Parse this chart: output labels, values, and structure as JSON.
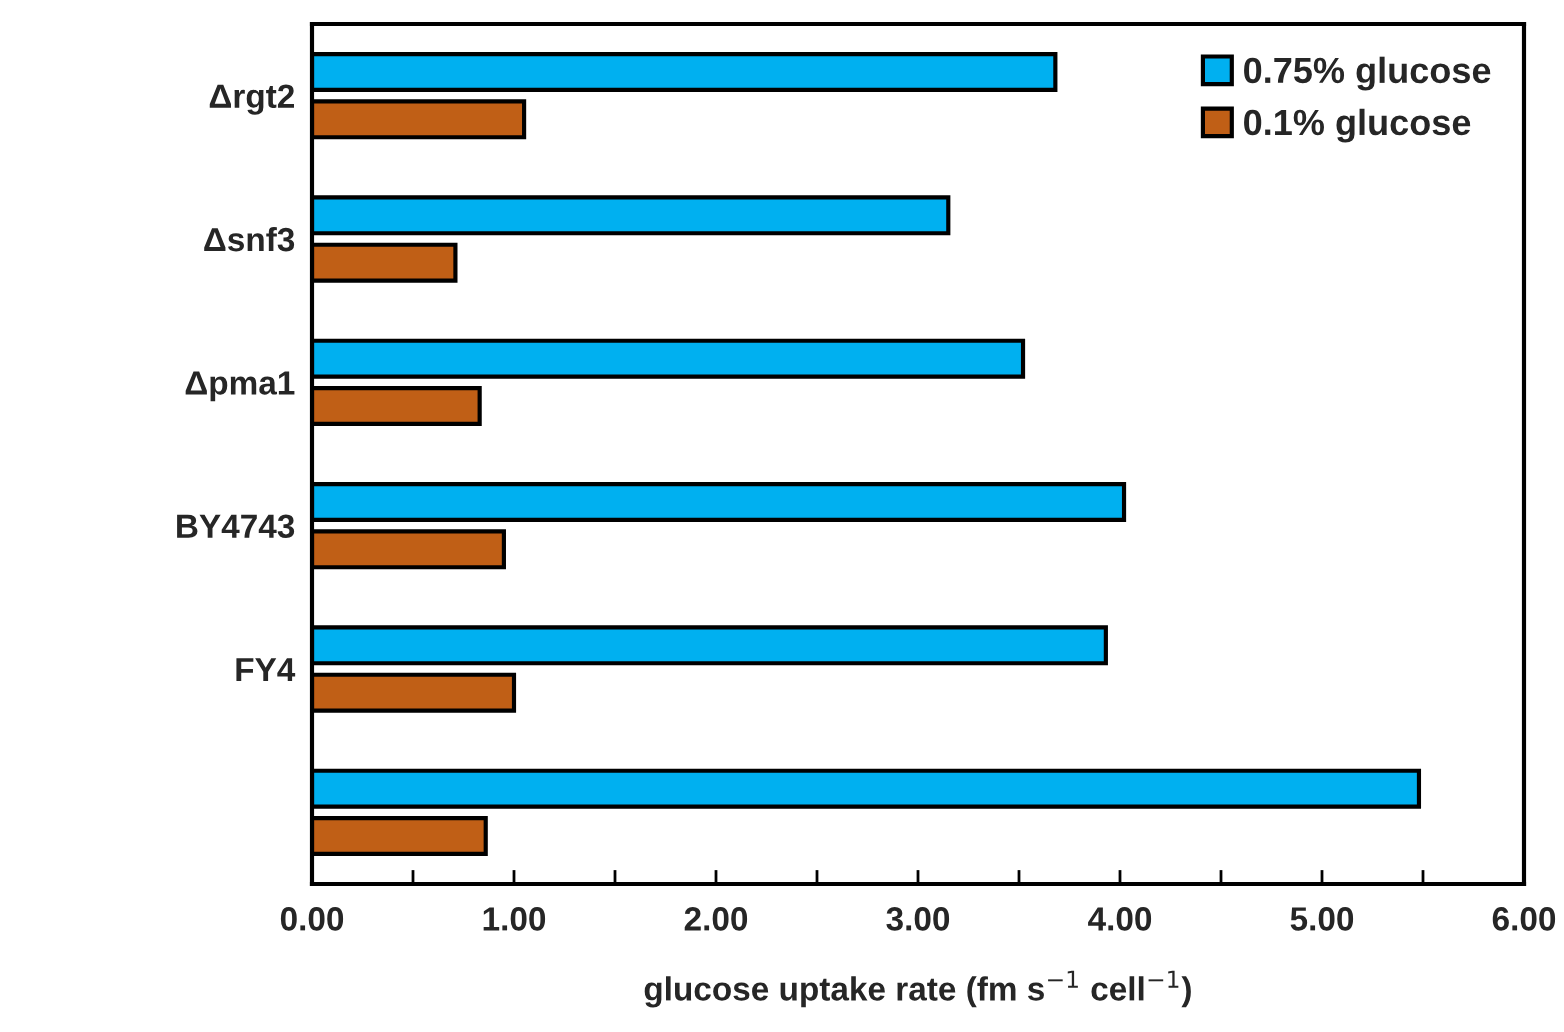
{
  "chart_data": {
    "type": "bar",
    "orientation": "horizontal",
    "categories": [
      "Δrgt2",
      "Δsnf3",
      "Δpma1",
      "BY4743",
      "FY4",
      null
    ],
    "series": [
      {
        "name": "0.75% glucose",
        "color": "#00b0f0",
        "values": [
          3.68,
          3.15,
          3.52,
          4.02,
          3.93,
          5.48
        ]
      },
      {
        "name": "0.1% glucose",
        "color": "#c05f16",
        "values": [
          1.05,
          0.71,
          0.83,
          0.95,
          1.0,
          0.86
        ]
      }
    ],
    "xlabel": "glucose uptake rate (fm s$^{−1}$ cell$^{−1}$)",
    "xlim": [
      0,
      6
    ],
    "xticks": [
      {
        "value": 0,
        "label": "0.00"
      },
      {
        "value": 0.5,
        "label": null
      },
      {
        "value": 1,
        "label": "1.00"
      },
      {
        "value": 1.5,
        "label": null
      },
      {
        "value": 2,
        "label": "2.00"
      },
      {
        "value": 2.5,
        "label": null
      },
      {
        "value": 3,
        "label": "3.00"
      },
      {
        "value": 3.5,
        "label": null
      },
      {
        "value": 4,
        "label": "4.00"
      },
      {
        "value": 4.5,
        "label": null
      },
      {
        "value": 5,
        "label": "5.00"
      },
      {
        "value": 5.5,
        "label": null
      },
      {
        "value": 6,
        "label": "6.00"
      }
    ],
    "legend": "top right",
    "grid": false
  }
}
